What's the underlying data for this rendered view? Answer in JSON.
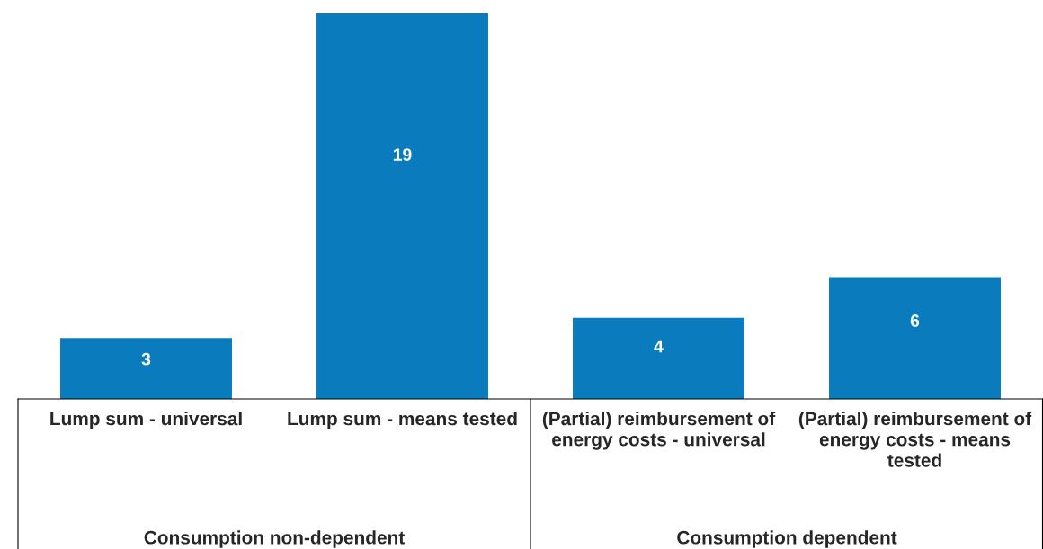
{
  "chart_data": {
    "type": "bar",
    "categories": [
      "Lump sum - universal",
      "Lump sum - means tested",
      "(Partial) reimbursement of energy costs - universal",
      "(Partial) reimbursement of energy costs - means tested"
    ],
    "values": [
      3,
      19,
      4,
      6
    ],
    "color": "#0a7bbd",
    "data_labels": true,
    "annotations": [
      "Consumption non-dependent",
      "Consumption dependent"
    ]
  }
}
